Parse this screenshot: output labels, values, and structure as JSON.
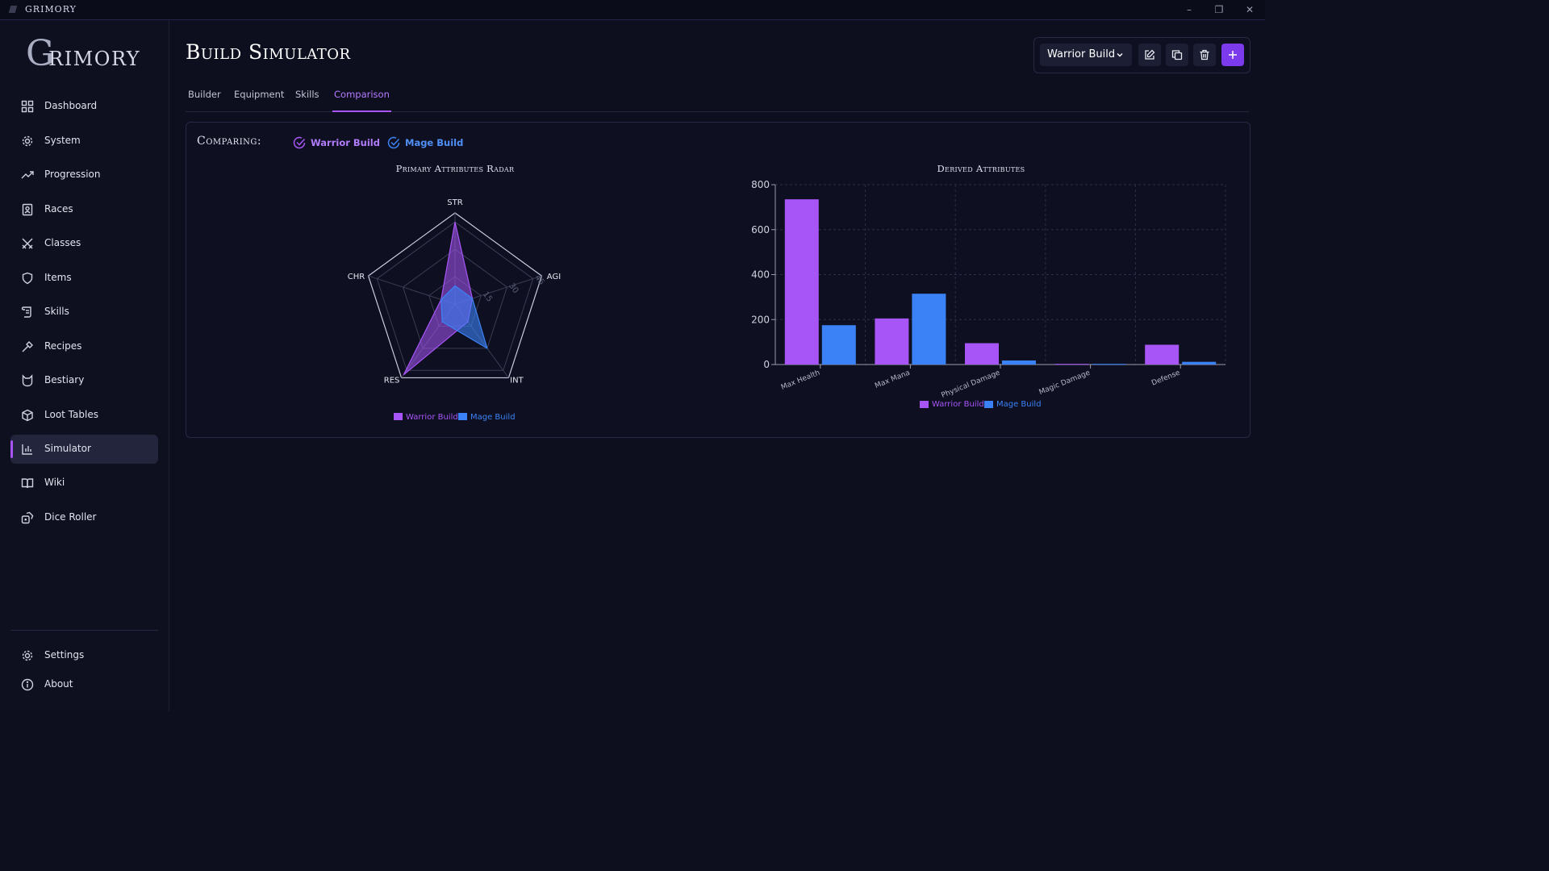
{
  "app": {
    "name": "GRIMORY"
  },
  "window": {
    "minimize": "–",
    "maximize": "❐",
    "close": "✕"
  },
  "brand": {
    "initial": "G",
    "rest": "RIMORY"
  },
  "sidebar": {
    "items": [
      {
        "label": "Dashboard",
        "icon": "dashboard-icon"
      },
      {
        "label": "System",
        "icon": "gear-icon"
      },
      {
        "label": "Progression",
        "icon": "trend-icon"
      },
      {
        "label": "Races",
        "icon": "badge-icon"
      },
      {
        "label": "Classes",
        "icon": "swords-icon"
      },
      {
        "label": "Items",
        "icon": "shield-icon"
      },
      {
        "label": "Skills",
        "icon": "scroll-icon"
      },
      {
        "label": "Recipes",
        "icon": "hammer-icon"
      },
      {
        "label": "Bestiary",
        "icon": "cat-icon"
      },
      {
        "label": "Loot Tables",
        "icon": "package-icon"
      },
      {
        "label": "Simulator",
        "icon": "bar-chart-icon",
        "active": true
      },
      {
        "label": "Wiki",
        "icon": "book-icon"
      },
      {
        "label": "Dice Roller",
        "icon": "dice-icon"
      }
    ],
    "bottom": [
      {
        "label": "Settings",
        "icon": "gear-icon"
      },
      {
        "label": "About",
        "icon": "info-icon"
      }
    ]
  },
  "header": {
    "title": "Build Simulator"
  },
  "tabs": [
    {
      "label": "Builder"
    },
    {
      "label": "Equipment"
    },
    {
      "label": "Skills"
    },
    {
      "label": "Comparison",
      "active": true
    }
  ],
  "toolbar": {
    "selected_build": "Warrior Build"
  },
  "comparison": {
    "label": "Comparing:",
    "builds": [
      {
        "name": "Warrior Build",
        "color": "#a855f7"
      },
      {
        "name": "Mage Build",
        "color": "#3b82f6"
      }
    ]
  },
  "chart_data": [
    {
      "type": "radar",
      "title": "Primary Attributes Radar",
      "axes": [
        "STR",
        "AGI",
        "INT",
        "RES",
        "CHR"
      ],
      "range": [
        0,
        50
      ],
      "tick_labels": [
        "15",
        "30",
        "45"
      ],
      "ticks": [
        15,
        30,
        45
      ],
      "series": [
        {
          "name": "Warrior Build",
          "color": "#a855f7",
          "values": [
            45,
            10,
            12,
            48,
            8
          ]
        },
        {
          "name": "Mage Build",
          "color": "#3b82f6",
          "values": [
            10,
            10,
            30,
            12,
            8
          ]
        }
      ],
      "legend": "bottom"
    },
    {
      "type": "bar",
      "title": "Derived Attributes",
      "categories": [
        "Max Health",
        "Max Mana",
        "Physical Damage",
        "Magic Damage",
        "Defense"
      ],
      "series": [
        {
          "name": "Warrior Build",
          "color": "#a855f7",
          "values": [
            735,
            205,
            95,
            3,
            88
          ]
        },
        {
          "name": "Mage Build",
          "color": "#3b82f6",
          "values": [
            175,
            315,
            18,
            3,
            12
          ]
        }
      ],
      "ylim": [
        0,
        800
      ],
      "yticks": [
        0,
        200,
        400,
        600,
        800
      ],
      "grid": true,
      "legend": "bottom"
    }
  ]
}
